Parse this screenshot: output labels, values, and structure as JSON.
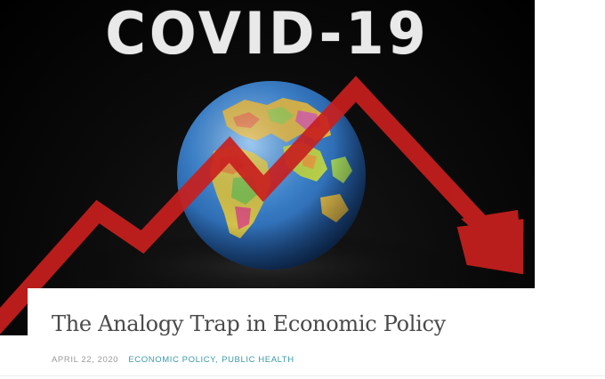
{
  "hero": {
    "headline": "COVID-19",
    "image_subject": "globe-with-falling-red-arrow",
    "colors": {
      "background": "#000000",
      "arrow": "#c8201e",
      "ocean": "#2f78c8"
    }
  },
  "post": {
    "title": "The Analogy Trap in Economic Policy",
    "date": "APRIL 22, 2020",
    "categories": [
      {
        "label": "ECONOMIC POLICY"
      },
      {
        "label": "PUBLIC HEALTH"
      }
    ],
    "category_separator": ",",
    "accent_color": "#3a9aa8"
  }
}
